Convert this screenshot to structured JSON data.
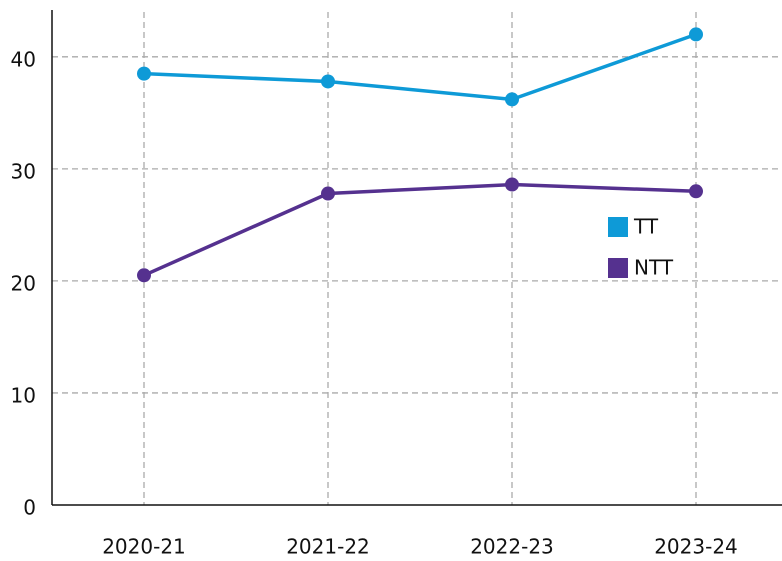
{
  "chart_data": {
    "type": "line",
    "categories": [
      "2020-21",
      "2021-22",
      "2022-23",
      "2023-24"
    ],
    "series": [
      {
        "name": "TT",
        "color": "#0e9ad7",
        "values": [
          38.5,
          37.8,
          36.2,
          42
        ]
      },
      {
        "name": "NTT",
        "color": "#55318f",
        "values": [
          20.5,
          27.8,
          28.6,
          28.0
        ]
      }
    ],
    "ylim": [
      0,
      44
    ],
    "yticks": [
      0,
      10,
      20,
      30,
      40
    ],
    "grid": true,
    "legend": "right"
  }
}
